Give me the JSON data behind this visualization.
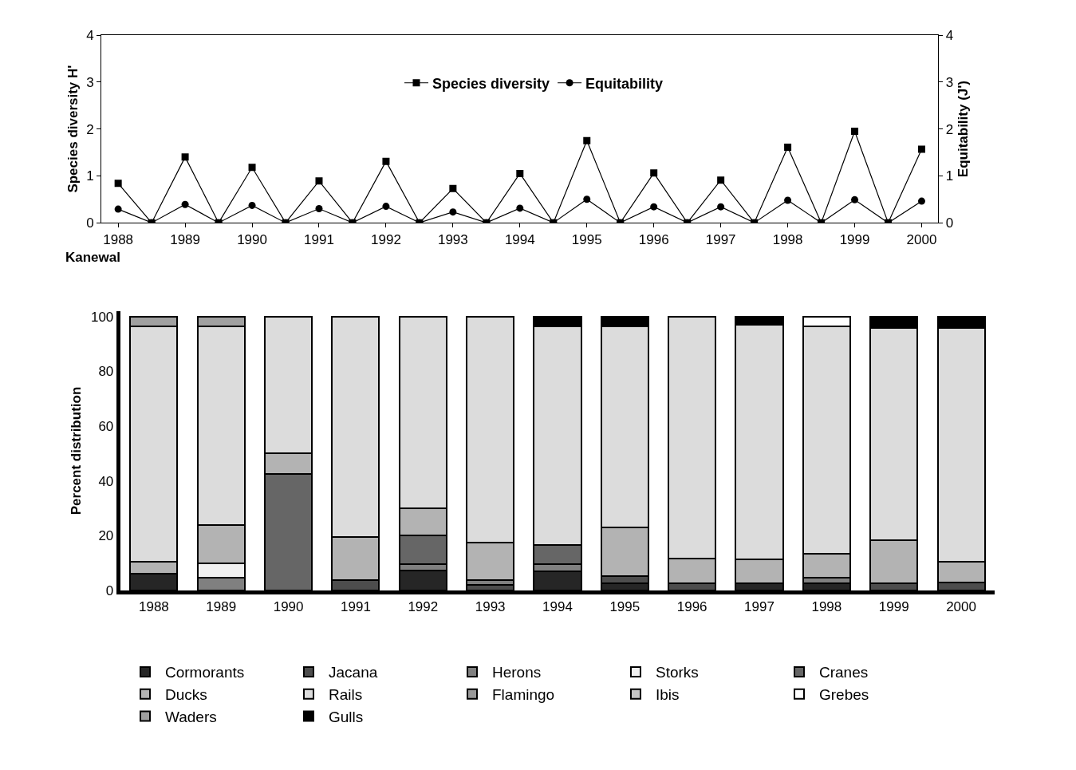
{
  "chart_data": [
    {
      "type": "line",
      "ylabel": "Species diversity H'",
      "y2label": "Equitability (J')",
      "x": [
        1988,
        1988.5,
        1989,
        1989.5,
        1990,
        1990.5,
        1991,
        1991.5,
        1992,
        1992.5,
        1993,
        1993.5,
        1994,
        1994.5,
        1995,
        1995.5,
        1996,
        1996.5,
        1997,
        1997.5,
        1998,
        1998.5,
        1999,
        1999.5,
        2000
      ],
      "xlim": [
        1987.75,
        2000.25
      ],
      "xticks": [
        1988,
        1989,
        1990,
        1991,
        1992,
        1993,
        1994,
        1995,
        1996,
        1997,
        1998,
        1999,
        2000
      ],
      "ylim": [
        0,
        4
      ],
      "yticks": [
        0,
        1,
        2,
        3,
        4
      ],
      "y2lim": [
        0,
        4
      ],
      "y2ticks": [
        0,
        1,
        2,
        3,
        4
      ],
      "legend": "top",
      "series": [
        {
          "name": "Species diversity",
          "color": "#000000",
          "marker": "square",
          "values": [
            0.84,
            0,
            1.4,
            0,
            1.18,
            0,
            0.89,
            0,
            1.31,
            0,
            0.73,
            0,
            1.05,
            0,
            1.75,
            0,
            1.06,
            0,
            0.91,
            0,
            1.61,
            0,
            1.95,
            0,
            1.57
          ]
        },
        {
          "name": "Equitability",
          "color": "#000000",
          "marker": "circle",
          "axis": "y2",
          "values": [
            0.29,
            0,
            0.39,
            0,
            0.37,
            0,
            0.3,
            0,
            0.35,
            0,
            0.23,
            0,
            0.31,
            0,
            0.5,
            0,
            0.34,
            0,
            0.34,
            0,
            0.48,
            0,
            0.49,
            0,
            0.46
          ]
        }
      ]
    },
    {
      "type": "bar",
      "stacked": true,
      "title": "Kanewal",
      "ylabel": "Percent distribution",
      "categories": [
        "1988",
        "1989",
        "1990",
        "1991",
        "1992",
        "1993",
        "1994",
        "1995",
        "1996",
        "1997",
        "1998",
        "1999",
        "2000"
      ],
      "ylim": [
        0,
        102
      ],
      "yticks": [
        0,
        20,
        40,
        60,
        80,
        100
      ],
      "legend": "bottom",
      "series": [
        {
          "name": "Cormorants",
          "color": "#262626",
          "values": [
            6.1,
            0,
            0,
            0,
            7.4,
            0,
            7,
            2.6,
            0,
            2.6,
            2.6,
            0,
            0
          ]
        },
        {
          "name": "Jacana",
          "color": "#4d4d4d",
          "values": [
            0,
            0,
            0,
            3.9,
            0,
            2.2,
            0,
            2.6,
            2.6,
            0,
            0,
            2.6,
            3
          ]
        },
        {
          "name": "Herons",
          "color": "#808080",
          "values": [
            0,
            4.8,
            0,
            0,
            2.2,
            1.7,
            2.6,
            0,
            0,
            0,
            2.2,
            0,
            0
          ]
        },
        {
          "name": "Storks",
          "color": "#f0f0f0",
          "values": [
            0,
            5.2,
            0,
            0,
            0,
            0,
            0,
            0,
            0,
            0,
            0,
            0,
            0
          ]
        },
        {
          "name": "Cranes",
          "color": "#666666",
          "values": [
            0,
            0,
            42.6,
            0,
            10.4,
            0,
            7,
            0,
            0,
            0,
            0,
            0,
            0
          ]
        },
        {
          "name": "Ducks",
          "color": "#b3b3b3",
          "values": [
            4.3,
            13.9,
            7.4,
            15.7,
            10,
            13.5,
            0,
            17.8,
            9.1,
            8.7,
            8.7,
            15.7,
            7.5
          ]
        },
        {
          "name": "Rails",
          "color": "#dcdcdc",
          "values": [
            85.9,
            72.6,
            50,
            80.4,
            70,
            82.6,
            79.9,
            73.3,
            88.3,
            85.7,
            82.8,
            77.4,
            85.2
          ]
        },
        {
          "name": "Flamingo",
          "color": "#999999",
          "values": [
            0,
            0,
            0,
            0,
            0,
            0,
            0,
            0,
            0,
            0,
            0,
            0,
            0
          ]
        },
        {
          "name": "Ibis",
          "color": "#c6c6c6",
          "values": [
            0,
            0,
            0,
            0,
            0,
            0,
            0,
            0,
            0,
            0,
            0,
            0,
            0
          ]
        },
        {
          "name": "Grebes",
          "color": "#ffffff",
          "values": [
            0,
            0,
            0,
            0,
            0,
            0,
            0,
            0,
            0,
            0,
            3.7,
            0,
            0
          ]
        },
        {
          "name": "Waders",
          "color": "#a0a0a0",
          "values": [
            3.7,
            3.5,
            0,
            0,
            0,
            0,
            0,
            0,
            0,
            0,
            0,
            0,
            0
          ]
        },
        {
          "name": "Gulls",
          "color": "#000000",
          "values": [
            0,
            0,
            0,
            0,
            0,
            0,
            3.5,
            3.7,
            0,
            3,
            0,
            4.3,
            4.3
          ]
        }
      ]
    }
  ]
}
